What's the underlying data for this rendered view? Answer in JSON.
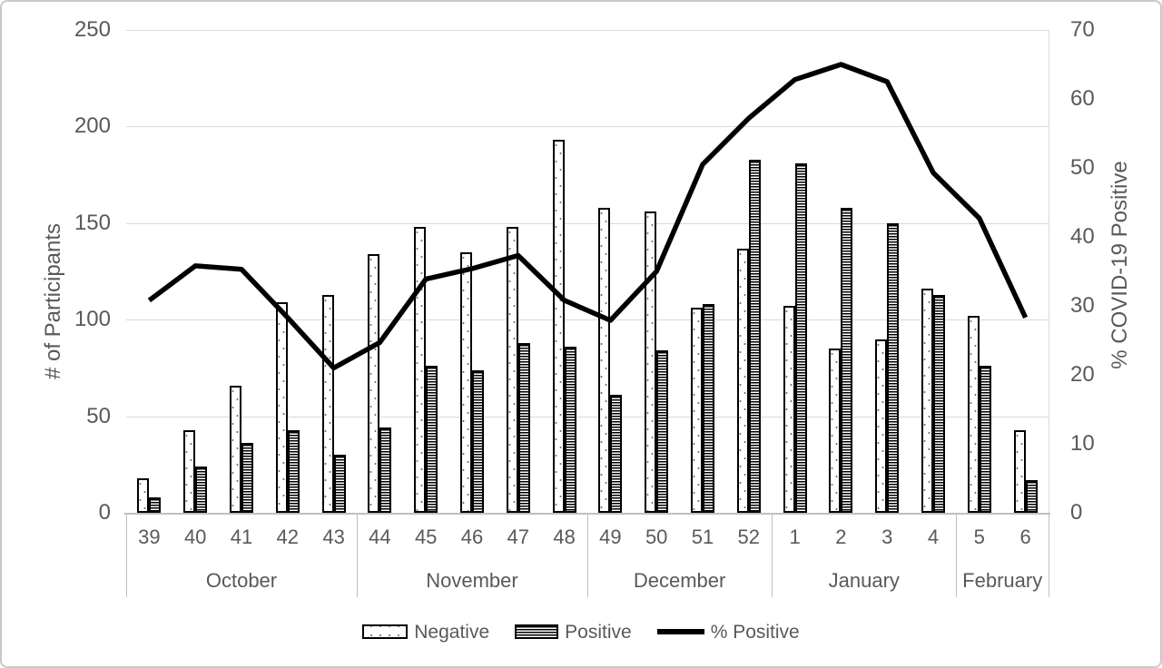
{
  "chart_data": {
    "type": "bar",
    "subtype": "grouped-bars-with-line-overlay",
    "title": "",
    "ylabel_left": "# of Participants",
    "ylabel_right": "% COVID-19 Positive",
    "ylim_left": [
      0,
      250
    ],
    "ylim_right": [
      0,
      70
    ],
    "yticks_left": [
      0,
      50,
      100,
      150,
      200,
      250
    ],
    "yticks_right": [
      0,
      10,
      20,
      30,
      40,
      50,
      60,
      70
    ],
    "grid": "horizontal-on",
    "legend_position": "bottom",
    "categories": [
      "39",
      "40",
      "41",
      "42",
      "43",
      "44",
      "45",
      "46",
      "47",
      "48",
      "49",
      "50",
      "51",
      "52",
      "1",
      "2",
      "3",
      "4",
      "5",
      "6"
    ],
    "month_groups": [
      {
        "label": "October",
        "weeks": 5
      },
      {
        "label": "November",
        "weeks": 5
      },
      {
        "label": "December",
        "weeks": 4
      },
      {
        "label": "January",
        "weeks": 4
      },
      {
        "label": "February",
        "weeks": 2
      }
    ],
    "series": [
      {
        "name": "Negative",
        "type": "bar",
        "axis": "left",
        "pattern": "dotted-white",
        "values": [
          18,
          43,
          66,
          109,
          113,
          134,
          148,
          135,
          148,
          193,
          158,
          156,
          106,
          137,
          107,
          85,
          90,
          116,
          102,
          43
        ]
      },
      {
        "name": "Positive",
        "type": "bar",
        "axis": "left",
        "pattern": "horizontal-stripes",
        "values": [
          8,
          24,
          36,
          43,
          30,
          44,
          76,
          74,
          88,
          86,
          61,
          84,
          108,
          183,
          181,
          158,
          150,
          113,
          76,
          17
        ]
      },
      {
        "name": "% Positive",
        "type": "line",
        "axis": "right",
        "color": "#000000",
        "values": [
          30.8,
          35.8,
          35.3,
          28.3,
          21.0,
          24.7,
          33.9,
          35.4,
          37.3,
          30.8,
          27.9,
          35.0,
          50.5,
          57.2,
          62.8,
          65.0,
          62.5,
          49.3,
          42.7,
          28.3
        ]
      }
    ],
    "legend": [
      {
        "label": "Negative",
        "swatch": "dotted-bar"
      },
      {
        "label": "Positive",
        "swatch": "striped-bar"
      },
      {
        "label": "% Positive",
        "swatch": "thick-line"
      }
    ],
    "colors": {
      "text": "#595959",
      "gridline": "#d9d9d9",
      "axis_line": "#bfbfbf",
      "bar_outline": "#000000",
      "line_series": "#000000",
      "background": "#ffffff",
      "frame_border": "#c9c9c9"
    }
  }
}
